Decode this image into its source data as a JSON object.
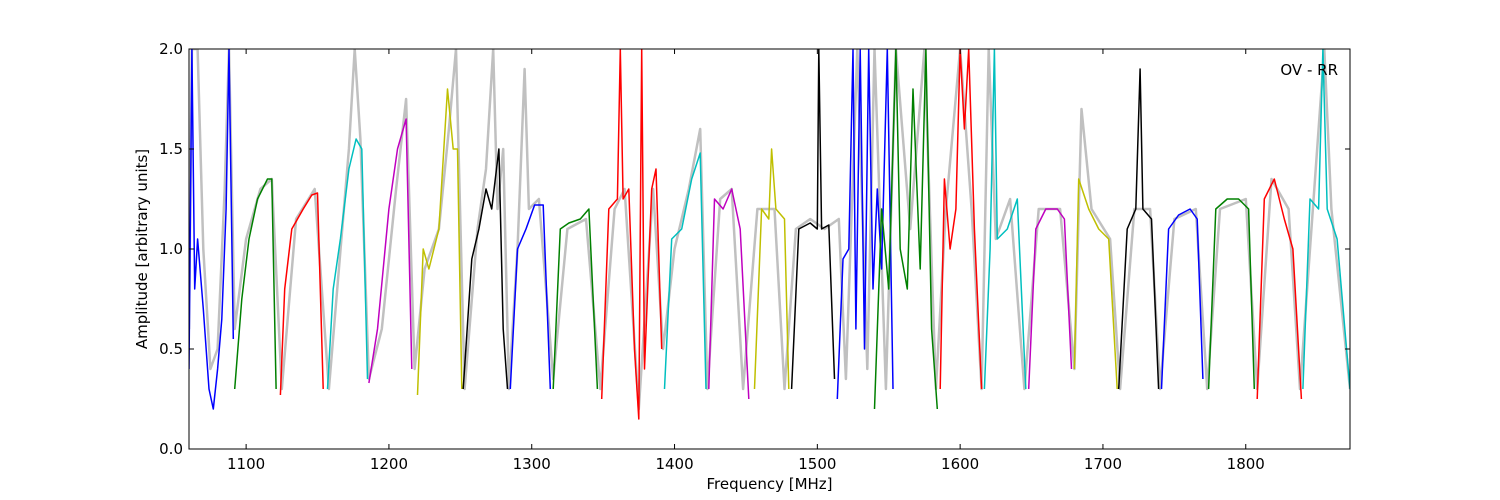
{
  "chart_data": {
    "type": "line",
    "title": "",
    "annotation": "OV - RR",
    "xlabel": "Frequency [MHz]",
    "ylabel": "Amplitude [arbitrary units]",
    "xlim": [
      1060,
      1873
    ],
    "ylim": [
      0.0,
      2.0
    ],
    "xticks": [
      1100,
      1200,
      1300,
      1400,
      1500,
      1600,
      1700,
      1800
    ],
    "xtick_labels": [
      "1100",
      "1200",
      "1300",
      "1400",
      "1500",
      "1600",
      "1700",
      "1800"
    ],
    "yticks": [
      0.0,
      0.5,
      1.0,
      1.5,
      2.0
    ],
    "ytick_labels": [
      "0.0",
      "0.5",
      "1.0",
      "1.5",
      "2.0"
    ],
    "grid": false,
    "background_color": "#c0c0c0",
    "background_trace": [
      [
        1060,
        0.6
      ],
      [
        1062,
        2.0
      ],
      [
        1066,
        2.0
      ],
      [
        1070,
        1.0
      ],
      [
        1075,
        0.4
      ],
      [
        1080,
        0.5
      ],
      [
        1085,
        1.3
      ],
      [
        1088,
        2.0
      ],
      [
        1092,
        0.6
      ],
      [
        1100,
        1.05
      ],
      [
        1110,
        1.3
      ],
      [
        1118,
        1.35
      ],
      [
        1125,
        0.3
      ],
      [
        1135,
        1.15
      ],
      [
        1148,
        1.3
      ],
      [
        1158,
        0.3
      ],
      [
        1165,
        0.9
      ],
      [
        1172,
        1.5
      ],
      [
        1176,
        2.0
      ],
      [
        1180,
        1.55
      ],
      [
        1186,
        0.35
      ],
      [
        1195,
        0.6
      ],
      [
        1205,
        1.3
      ],
      [
        1212,
        1.75
      ],
      [
        1218,
        0.4
      ],
      [
        1225,
        0.9
      ],
      [
        1235,
        1.1
      ],
      [
        1242,
        1.6
      ],
      [
        1247,
        2.0
      ],
      [
        1253,
        0.3
      ],
      [
        1262,
        1.1
      ],
      [
        1268,
        1.4
      ],
      [
        1273,
        2.0
      ],
      [
        1276,
        1.2
      ],
      [
        1280,
        1.5
      ],
      [
        1284,
        0.3
      ],
      [
        1290,
        1.0
      ],
      [
        1295,
        1.9
      ],
      [
        1298,
        1.2
      ],
      [
        1305,
        1.25
      ],
      [
        1315,
        0.35
      ],
      [
        1325,
        1.1
      ],
      [
        1338,
        1.15
      ],
      [
        1348,
        0.3
      ],
      [
        1358,
        1.2
      ],
      [
        1365,
        1.3
      ],
      [
        1375,
        0.2
      ],
      [
        1385,
        1.3
      ],
      [
        1392,
        0.5
      ],
      [
        1400,
        1.0
      ],
      [
        1410,
        1.3
      ],
      [
        1418,
        1.6
      ],
      [
        1423,
        0.3
      ],
      [
        1432,
        1.25
      ],
      [
        1440,
        1.3
      ],
      [
        1448,
        0.3
      ],
      [
        1458,
        1.2
      ],
      [
        1470,
        1.2
      ],
      [
        1477,
        0.3
      ],
      [
        1485,
        1.1
      ],
      [
        1495,
        1.15
      ],
      [
        1505,
        1.1
      ],
      [
        1515,
        1.15
      ],
      [
        1520,
        0.35
      ],
      [
        1528,
        2.0
      ],
      [
        1535,
        0.4
      ],
      [
        1540,
        2.0
      ],
      [
        1548,
        0.3
      ],
      [
        1555,
        2.0
      ],
      [
        1565,
        1.1
      ],
      [
        1575,
        2.0
      ],
      [
        1583,
        0.3
      ],
      [
        1590,
        1.2
      ],
      [
        1600,
        2.0
      ],
      [
        1608,
        1.2
      ],
      [
        1615,
        0.3
      ],
      [
        1620,
        2.0
      ],
      [
        1625,
        1.05
      ],
      [
        1635,
        1.25
      ],
      [
        1645,
        0.3
      ],
      [
        1655,
        1.2
      ],
      [
        1670,
        1.2
      ],
      [
        1680,
        0.4
      ],
      [
        1685,
        1.7
      ],
      [
        1692,
        1.2
      ],
      [
        1705,
        1.05
      ],
      [
        1712,
        0.3
      ],
      [
        1722,
        1.2
      ],
      [
        1733,
        1.2
      ],
      [
        1740,
        0.3
      ],
      [
        1750,
        1.15
      ],
      [
        1765,
        1.2
      ],
      [
        1773,
        0.3
      ],
      [
        1782,
        1.2
      ],
      [
        1800,
        1.25
      ],
      [
        1808,
        0.3
      ],
      [
        1818,
        1.35
      ],
      [
        1830,
        1.2
      ],
      [
        1838,
        0.3
      ],
      [
        1848,
        1.3
      ],
      [
        1855,
        2.0
      ],
      [
        1860,
        1.2
      ],
      [
        1873,
        0.3
      ]
    ],
    "series": [
      {
        "color": "#0000ff",
        "points": [
          [
            1060,
            0.4
          ],
          [
            1062,
            2.0
          ],
          [
            1064,
            0.8
          ],
          [
            1066,
            1.05
          ],
          [
            1070,
            0.7
          ],
          [
            1074,
            0.3
          ],
          [
            1077,
            0.2
          ],
          [
            1080,
            0.4
          ],
          [
            1083,
            0.65
          ],
          [
            1086,
            1.2
          ],
          [
            1088,
            2.0
          ],
          [
            1091,
            0.55
          ]
        ]
      },
      {
        "color": "#008000",
        "points": [
          [
            1092,
            0.3
          ],
          [
            1097,
            0.75
          ],
          [
            1102,
            1.05
          ],
          [
            1108,
            1.25
          ],
          [
            1115,
            1.35
          ],
          [
            1118,
            1.35
          ],
          [
            1121,
            0.3
          ]
        ]
      },
      {
        "color": "#ff0000",
        "points": [
          [
            1124,
            0.27
          ],
          [
            1127,
            0.8
          ],
          [
            1132,
            1.1
          ],
          [
            1140,
            1.2
          ],
          [
            1146,
            1.27
          ],
          [
            1150,
            1.28
          ],
          [
            1154,
            0.3
          ]
        ]
      },
      {
        "color": "#00bfbf",
        "points": [
          [
            1157,
            0.3
          ],
          [
            1161,
            0.8
          ],
          [
            1166,
            1.05
          ],
          [
            1172,
            1.4
          ],
          [
            1177,
            1.55
          ],
          [
            1181,
            1.5
          ],
          [
            1185,
            0.35
          ]
        ]
      },
      {
        "color": "#bf00bf",
        "points": [
          [
            1186,
            0.33
          ],
          [
            1192,
            0.6
          ],
          [
            1200,
            1.2
          ],
          [
            1206,
            1.5
          ],
          [
            1212,
            1.65
          ],
          [
            1216,
            0.4
          ]
        ]
      },
      {
        "color": "#bfbf00",
        "points": [
          [
            1220,
            0.27
          ],
          [
            1224,
            1.0
          ],
          [
            1228,
            0.9
          ],
          [
            1235,
            1.1
          ],
          [
            1241,
            1.8
          ],
          [
            1245,
            1.5
          ],
          [
            1248,
            1.5
          ],
          [
            1251,
            0.3
          ]
        ]
      },
      {
        "color": "#000000",
        "points": [
          [
            1252,
            0.3
          ],
          [
            1258,
            0.95
          ],
          [
            1263,
            1.1
          ],
          [
            1268,
            1.3
          ],
          [
            1272,
            1.2
          ],
          [
            1277,
            1.5
          ],
          [
            1280,
            0.6
          ],
          [
            1283,
            0.3
          ]
        ]
      },
      {
        "color": "#0000ff",
        "points": [
          [
            1285,
            0.3
          ],
          [
            1290,
            1.0
          ],
          [
            1296,
            1.1
          ],
          [
            1302,
            1.22
          ],
          [
            1308,
            1.22
          ],
          [
            1313,
            0.3
          ]
        ]
      },
      {
        "color": "#008000",
        "points": [
          [
            1315,
            0.3
          ],
          [
            1320,
            1.1
          ],
          [
            1326,
            1.13
          ],
          [
            1334,
            1.15
          ],
          [
            1340,
            1.2
          ],
          [
            1346,
            0.3
          ]
        ]
      },
      {
        "color": "#ff0000",
        "points": [
          [
            1349,
            0.25
          ],
          [
            1354,
            1.2
          ],
          [
            1360,
            1.25
          ],
          [
            1362,
            2.0
          ],
          [
            1364,
            1.25
          ],
          [
            1368,
            1.3
          ],
          [
            1372,
            0.5
          ],
          [
            1375,
            0.15
          ],
          [
            1377,
            2.0
          ],
          [
            1379,
            0.4
          ],
          [
            1384,
            1.3
          ],
          [
            1387,
            1.4
          ],
          [
            1391,
            0.5
          ]
        ]
      },
      {
        "color": "#00bfbf",
        "points": [
          [
            1393,
            0.3
          ],
          [
            1398,
            1.05
          ],
          [
            1405,
            1.1
          ],
          [
            1412,
            1.35
          ],
          [
            1418,
            1.48
          ],
          [
            1422,
            0.3
          ]
        ]
      },
      {
        "color": "#bf00bf",
        "points": [
          [
            1424,
            0.3
          ],
          [
            1428,
            1.25
          ],
          [
            1434,
            1.2
          ],
          [
            1440,
            1.3
          ],
          [
            1446,
            1.1
          ],
          [
            1452,
            0.25
          ]
        ]
      },
      {
        "color": "#bfbf00",
        "points": [
          [
            1456,
            0.3
          ],
          [
            1461,
            1.2
          ],
          [
            1466,
            1.15
          ],
          [
            1468,
            1.5
          ],
          [
            1471,
            1.2
          ],
          [
            1477,
            1.15
          ],
          [
            1480,
            0.3
          ]
        ]
      },
      {
        "color": "#000000",
        "points": [
          [
            1482,
            0.3
          ],
          [
            1487,
            1.1
          ],
          [
            1495,
            1.13
          ],
          [
            1500,
            1.1
          ],
          [
            1501,
            2.0
          ],
          [
            1503,
            1.1
          ],
          [
            1508,
            1.12
          ],
          [
            1512,
            0.35
          ]
        ]
      },
      {
        "color": "#0000ff",
        "points": [
          [
            1514,
            0.25
          ],
          [
            1518,
            0.95
          ],
          [
            1522,
            1.0
          ],
          [
            1525,
            2.0
          ],
          [
            1527,
            0.6
          ],
          [
            1530,
            2.0
          ],
          [
            1533,
            0.5
          ],
          [
            1536,
            2.0
          ],
          [
            1539,
            0.8
          ],
          [
            1542,
            1.3
          ],
          [
            1545,
            0.9
          ],
          [
            1549,
            2.0
          ],
          [
            1553,
            0.3
          ]
        ]
      },
      {
        "color": "#008000",
        "points": [
          [
            1540,
            0.2
          ],
          [
            1545,
            1.2
          ],
          [
            1550,
            0.8
          ],
          [
            1555,
            2.0
          ],
          [
            1558,
            1.0
          ],
          [
            1563,
            0.8
          ],
          [
            1567,
            1.8
          ],
          [
            1572,
            0.9
          ],
          [
            1576,
            2.0
          ],
          [
            1580,
            0.6
          ],
          [
            1584,
            0.2
          ]
        ]
      },
      {
        "color": "#ff0000",
        "points": [
          [
            1586,
            0.3
          ],
          [
            1589,
            1.35
          ],
          [
            1593,
            1.0
          ],
          [
            1597,
            1.2
          ],
          [
            1600,
            2.0
          ],
          [
            1603,
            1.6
          ],
          [
            1606,
            2.0
          ],
          [
            1610,
            1.1
          ],
          [
            1615,
            0.3
          ]
        ]
      },
      {
        "color": "#00bfbf",
        "points": [
          [
            1617,
            0.3
          ],
          [
            1621,
            1.0
          ],
          [
            1624,
            2.0
          ],
          [
            1626,
            1.05
          ],
          [
            1633,
            1.1
          ],
          [
            1640,
            1.25
          ],
          [
            1646,
            0.3
          ]
        ]
      },
      {
        "color": "#bf00bf",
        "points": [
          [
            1648,
            0.3
          ],
          [
            1653,
            1.1
          ],
          [
            1660,
            1.2
          ],
          [
            1668,
            1.2
          ],
          [
            1673,
            1.15
          ],
          [
            1678,
            0.4
          ]
        ]
      },
      {
        "color": "#bfbf00",
        "points": [
          [
            1680,
            0.4
          ],
          [
            1683,
            1.35
          ],
          [
            1690,
            1.2
          ],
          [
            1697,
            1.1
          ],
          [
            1704,
            1.05
          ],
          [
            1710,
            0.3
          ]
        ]
      },
      {
        "color": "#000000",
        "points": [
          [
            1711,
            0.3
          ],
          [
            1717,
            1.1
          ],
          [
            1723,
            1.2
          ],
          [
            1726,
            1.9
          ],
          [
            1728,
            1.2
          ],
          [
            1734,
            1.15
          ],
          [
            1739,
            0.3
          ]
        ]
      },
      {
        "color": "#0000ff",
        "points": [
          [
            1741,
            0.3
          ],
          [
            1746,
            1.1
          ],
          [
            1753,
            1.17
          ],
          [
            1761,
            1.2
          ],
          [
            1766,
            1.15
          ],
          [
            1770,
            0.35
          ]
        ]
      },
      {
        "color": "#008000",
        "points": [
          [
            1774,
            0.3
          ],
          [
            1779,
            1.2
          ],
          [
            1787,
            1.25
          ],
          [
            1795,
            1.25
          ],
          [
            1802,
            1.2
          ],
          [
            1806,
            0.3
          ]
        ]
      },
      {
        "color": "#ff0000",
        "points": [
          [
            1808,
            0.25
          ],
          [
            1813,
            1.25
          ],
          [
            1820,
            1.35
          ],
          [
            1827,
            1.15
          ],
          [
            1833,
            1.0
          ],
          [
            1839,
            0.25
          ]
        ]
      },
      {
        "color": "#00bfbf",
        "points": [
          [
            1840,
            0.3
          ],
          [
            1845,
            1.25
          ],
          [
            1851,
            1.2
          ],
          [
            1854,
            2.0
          ],
          [
            1857,
            1.2
          ],
          [
            1864,
            1.05
          ],
          [
            1873,
            0.3
          ]
        ]
      }
    ]
  }
}
